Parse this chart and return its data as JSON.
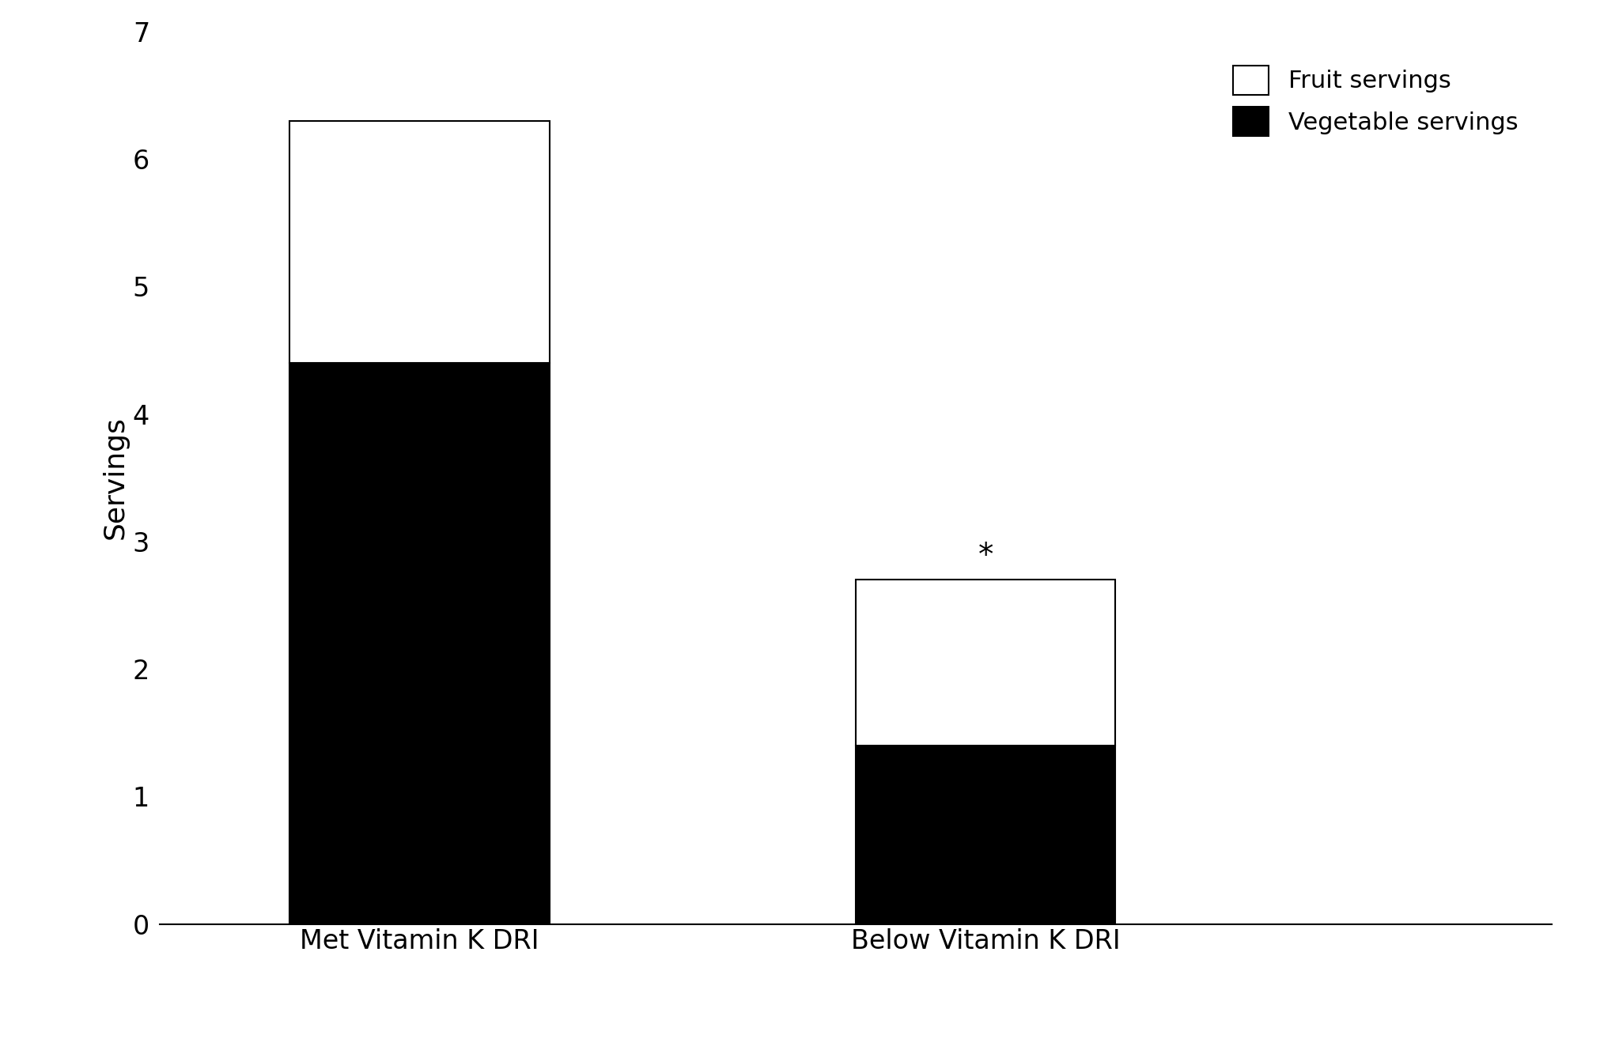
{
  "categories": [
    "Met Vitamin K DRI",
    "Below Vitamin K DRI"
  ],
  "vegetable_servings": [
    4.4,
    1.4
  ],
  "fruit_servings": [
    1.9,
    1.3
  ],
  "total_servings": [
    6.3,
    2.7
  ],
  "bar_color_veg": "#000000",
  "bar_color_fruit": "#ffffff",
  "bar_edgecolor": "#000000",
  "ylabel": "Servings",
  "ylim": [
    0,
    7
  ],
  "yticks": [
    0,
    1,
    2,
    3,
    4,
    5,
    6,
    7
  ],
  "bar_width": 0.55,
  "asterisk_text": "*",
  "legend_labels": [
    "Fruit servings",
    "Vegetable servings"
  ],
  "legend_colors": [
    "#ffffff",
    "#000000"
  ],
  "axis_fontsize": 26,
  "tick_fontsize": 24,
  "legend_fontsize": 22,
  "asterisk_fontsize": 28,
  "xlim": [
    -0.55,
    2.4
  ]
}
